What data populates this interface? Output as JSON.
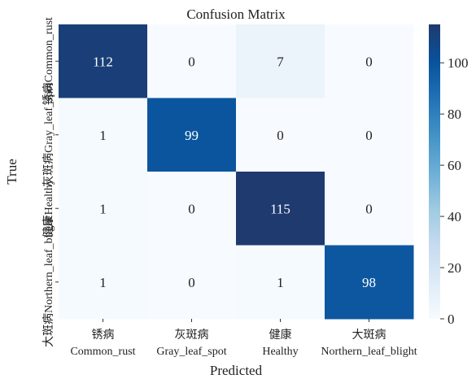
{
  "chart_data": {
    "type": "heatmap",
    "title": "Confusion Matrix",
    "xlabel": "Predicted",
    "ylabel": "True",
    "categories": [
      [
        "锈病",
        "Common_rust"
      ],
      [
        "灰斑病",
        "Gray_leaf_spot"
      ],
      [
        "健康",
        "Healthy"
      ],
      [
        "大斑病",
        "Northern_leaf_blight"
      ]
    ],
    "values": [
      [
        112,
        0,
        7,
        0
      ],
      [
        1,
        99,
        0,
        0
      ],
      [
        1,
        0,
        115,
        0
      ],
      [
        1,
        0,
        1,
        98
      ]
    ],
    "colors": [
      "#f7fbff",
      "#deebf7",
      "#c6dbef",
      "#9ecae1",
      "#6baed6",
      "#4292c6",
      "#2171b5",
      "#08519c",
      "#1f3a6e"
    ],
    "clim": [
      0,
      115
    ],
    "cticks": [
      0,
      20,
      40,
      60,
      80,
      100
    ]
  }
}
